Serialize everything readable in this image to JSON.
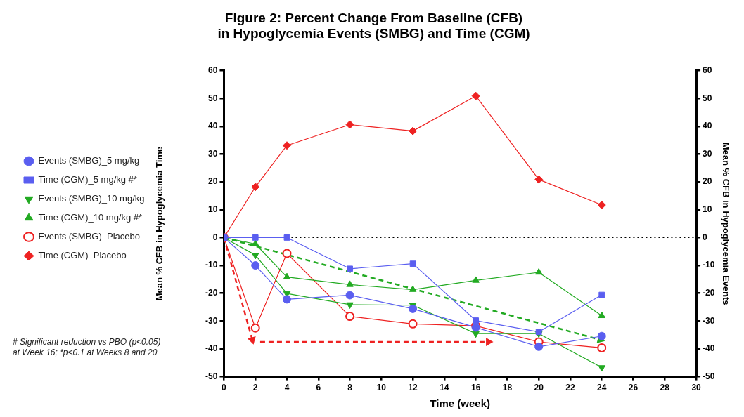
{
  "chart_data": {
    "type": "line",
    "title": "Figure 2: Percent Change From Baseline (CFB)\nin Hypoglycemia Events (SMBG) and Time (CGM)",
    "xlabel": "Time (week)",
    "ylabel": "Mean % CFB in Hypoglycemia Time",
    "y2label": "Mean % CFB in Hypoglycemia Events",
    "x": [
      0,
      2,
      4,
      8,
      12,
      16,
      20,
      24
    ],
    "series": [
      {
        "name": "Events (SMBG)_5 mg/kg",
        "color": "#5a5ef0",
        "marker": "circle",
        "values": [
          0,
          -10,
          -22.2,
          -20.7,
          -25.6,
          -32.3,
          -39.2,
          -35.4
        ]
      },
      {
        "name": "Time (CGM)_5 mg/kg #*",
        "color": "#5a5ef0",
        "marker": "square",
        "values": [
          0,
          0,
          0,
          -11.2,
          -9.4,
          -29.8,
          -33.9,
          -20.6
        ]
      },
      {
        "name": "Events (SMBG)_10 mg/kg",
        "color": "#22aa22",
        "marker": "triangle-down",
        "values": [
          0,
          -6.3,
          -20.1,
          -24.1,
          -24.3,
          -34.5,
          -34.5,
          -46.7
        ]
      },
      {
        "name": "Time (CGM)_10 mg/kg #*",
        "color": "#22aa22",
        "marker": "triangle",
        "values": [
          0,
          -2.3,
          -14.2,
          -16.9,
          -18.7,
          -15.4,
          -12.5,
          -28.1
        ]
      },
      {
        "name": "Events (SMBG)_Placebo",
        "color": "#ee2222",
        "marker": "circle-open",
        "values": [
          0,
          -32.5,
          -5.7,
          -28.3,
          -31,
          -31.7,
          -37.5,
          -39.6
        ]
      },
      {
        "name": "Time (CGM)_Placebo",
        "color": "#ee2222",
        "marker": "diamond",
        "values": [
          0,
          18.2,
          33.1,
          40.6,
          38.3,
          50.9,
          20.9,
          11.7
        ]
      },
      {
        "color": "#22aa22",
        "marker": "triangle",
        "line_style": "dashed",
        "x": [
          0,
          23.9
        ],
        "values": [
          0,
          -36.7
        ]
      },
      {
        "color": "#ee2222",
        "marker": "triangle",
        "line_style": "dashed",
        "x": [
          0,
          1.8
        ],
        "values": [
          0,
          -36.7
        ]
      },
      {
        "color": "#ee2222",
        "marker": "triangle",
        "line_style": "dashed",
        "x": [
          2.3,
          16.8
        ],
        "values": [
          -37.5,
          -37.5
        ]
      }
    ],
    "xlim": [
      0,
      30
    ],
    "xticks": [
      0,
      2,
      4,
      6,
      8,
      10,
      12,
      14,
      16,
      18,
      20,
      22,
      24,
      26,
      28,
      30
    ],
    "ylim": [
      -50,
      60
    ],
    "yticks": [
      -50,
      -40,
      -30,
      -20,
      -10,
      0,
      10,
      20,
      30,
      40,
      50,
      60
    ],
    "y2lim": [
      -50,
      60
    ],
    "y2ticks": [
      -50,
      -40,
      -30,
      -20,
      -10,
      0,
      10,
      20,
      30,
      40,
      50,
      60
    ],
    "ref_lines": [
      {
        "axis": "y",
        "value": 0,
        "color": "#000000",
        "line_style": "dotted"
      }
    ],
    "grid": false,
    "legend": "left",
    "annotations": [
      "# Significant reduction vs PBO (p<0.05)\nat Week 16; *p<0.1 at Weeks 8 and 20"
    ]
  }
}
